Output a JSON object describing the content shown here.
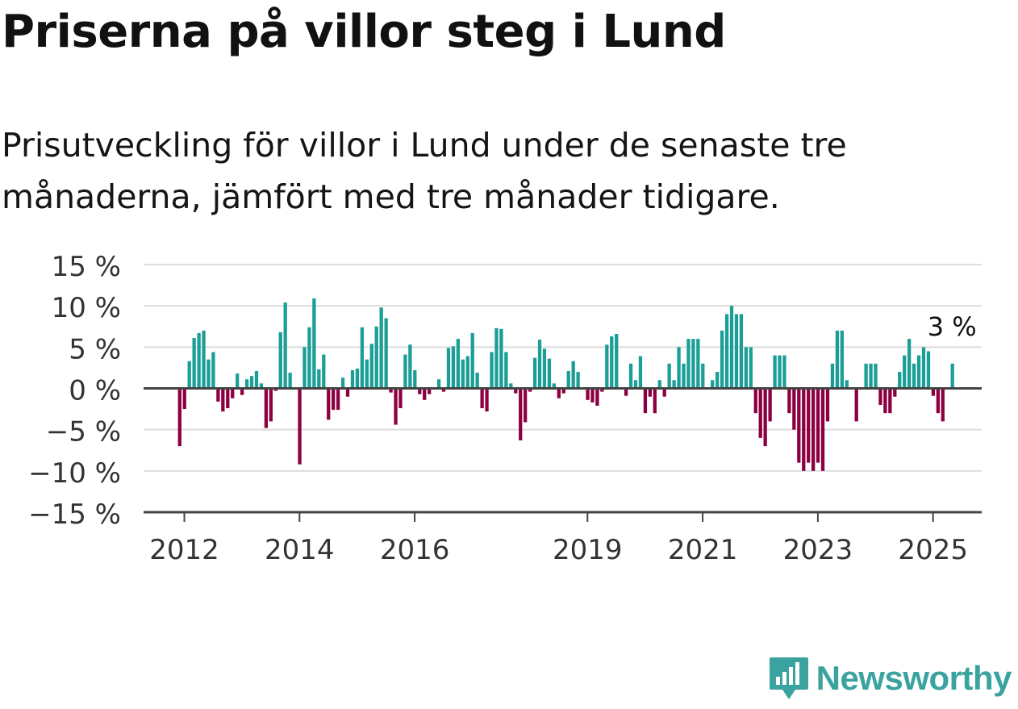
{
  "title": "Priserna på villor steg i Lund",
  "subtitle": "Prisutveckling för villor i Lund under de senaste tre månaderna, jämfört med tre månader tidigare.",
  "brand": "Newsworthy",
  "colors": {
    "positive": "#1a9e96",
    "negative": "#8c0041",
    "grid": "#dddddd",
    "axis": "#444444",
    "logo": "#3aa39f"
  },
  "chart_data": {
    "type": "bar",
    "title": "Priserna på villor steg i Lund",
    "xlabel": "",
    "ylabel": "",
    "ylim": [
      -15,
      15
    ],
    "y_ticks": [
      15,
      10,
      5,
      0,
      -5,
      -10,
      -15
    ],
    "y_tick_labels": [
      "15 %",
      "10 %",
      "5 %",
      "0 %",
      "−5 %",
      "−10 %",
      "−15 %"
    ],
    "x_ticks": [
      2012,
      2014,
      2016,
      2019,
      2021,
      2023,
      2025
    ],
    "x_start": 2011.92,
    "x_step": 0.08333,
    "annotation": {
      "label": "3 %",
      "value": 3
    },
    "values": [
      -7,
      -2.5,
      3.3,
      6.1,
      6.7,
      7,
      3.5,
      4.4,
      -1.6,
      -2.8,
      -2.4,
      -1.2,
      1.8,
      -0.8,
      1.1,
      1.5,
      2.1,
      0.6,
      -4.8,
      -4,
      -0.3,
      6.8,
      10.4,
      1.9,
      0,
      -9.2,
      5,
      7.4,
      10.9,
      2.3,
      4.1,
      -3.8,
      -2.6,
      -2.6,
      1.3,
      -1,
      2.2,
      2.4,
      7.4,
      3.5,
      5.4,
      7.5,
      9.8,
      8.5,
      -0.5,
      -4.4,
      -2.4,
      4.1,
      5.3,
      2.2,
      -0.7,
      -1.4,
      -0.7,
      0,
      1.1,
      -0.4,
      4.9,
      5.1,
      6,
      3.5,
      3.9,
      6.7,
      1.9,
      -2.4,
      -2.8,
      4.4,
      7.3,
      7.2,
      4.4,
      0.6,
      -0.6,
      -6.3,
      -4.1,
      -0.4,
      3.7,
      5.9,
      4.8,
      3.6,
      0.6,
      -1.2,
      -0.6,
      2.1,
      3.3,
      2,
      0,
      -1.4,
      -1.7,
      -2.1,
      -0.4,
      5.3,
      6.3,
      6.6,
      0,
      -0.9,
      3,
      1,
      3.9,
      -3,
      -1,
      -3,
      1,
      -1,
      3,
      1,
      5,
      3,
      6,
      6,
      6,
      3,
      0,
      1,
      2,
      7,
      9,
      10,
      9,
      9,
      5,
      5,
      -3,
      -6,
      -7,
      -4,
      4,
      4,
      4,
      -3,
      -5,
      -9,
      -10,
      -9,
      -10,
      -9,
      -10,
      -4,
      3,
      7,
      7,
      1,
      0,
      -4,
      0,
      3,
      3,
      3,
      -2,
      -3,
      -3,
      -1,
      2,
      4,
      6,
      3,
      4,
      5,
      4.5,
      -0.9,
      -3,
      -4,
      0,
      3
    ]
  }
}
